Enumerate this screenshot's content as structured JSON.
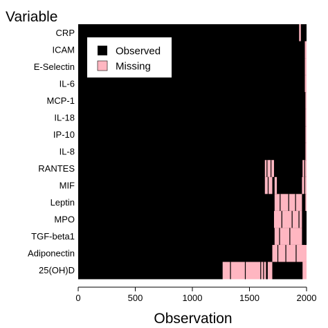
{
  "chart_data": {
    "type": "heatmap",
    "title": "Variable",
    "xlabel": "Observation",
    "ylabel": "",
    "xlim": [
      0,
      2000
    ],
    "xticks": [
      0,
      500,
      1000,
      1500,
      2000
    ],
    "grid": false,
    "legend_position": "top-left",
    "legend": [
      {
        "label": "Observed",
        "color": "#000000"
      },
      {
        "label": "Missing",
        "color": "#ffb6c1"
      }
    ],
    "variables": [
      "CRP",
      "ICAM",
      "E-Selectin",
      "IL-6",
      "MCP-1",
      "IL-18",
      "IP-10",
      "IL-8",
      "RANTES",
      "MIF",
      "Leptin",
      "MPO",
      "TGF-beta1",
      "Adiponectin",
      "25(OH)D"
    ],
    "missing_intervals": [
      [
        [
          1935,
          1950
        ]
      ],
      [
        [
          1985,
          2000
        ]
      ],
      [
        [
          1985,
          2000
        ]
      ],
      [
        [
          1985,
          2000
        ]
      ],
      [
        [
          1990,
          2000
        ]
      ],
      [
        [
          1990,
          2000
        ]
      ],
      [
        [
          1990,
          2000
        ]
      ],
      [
        [
          1990,
          2000
        ]
      ],
      [
        [
          1635,
          1715
        ],
        [
          1965,
          2000
        ]
      ],
      [
        [
          1635,
          1700
        ],
        [
          1720,
          1740
        ],
        [
          1960,
          2000
        ]
      ],
      [
        [
          1720,
          1960
        ],
        [
          1990,
          2000
        ]
      ],
      [
        [
          1715,
          1960
        ]
      ],
      [
        [
          1720,
          1960
        ]
      ],
      [
        [
          1700,
          2000
        ]
      ],
      [
        [
          1265,
          1645
        ],
        [
          1660,
          1700
        ],
        [
          1965,
          2000
        ]
      ]
    ],
    "observed_marks": [
      [],
      [],
      [],
      [],
      [],
      [],
      [],
      [],
      [
        1650,
        1685,
        1980
      ],
      [
        1660,
        1980
      ],
      [
        1765,
        1840,
        1900
      ],
      [
        1780,
        1870,
        1930
      ],
      [
        1760,
        1850
      ],
      [
        1745,
        1815,
        1905
      ],
      [
        1330,
        1460,
        1595,
        1620
      ]
    ]
  }
}
